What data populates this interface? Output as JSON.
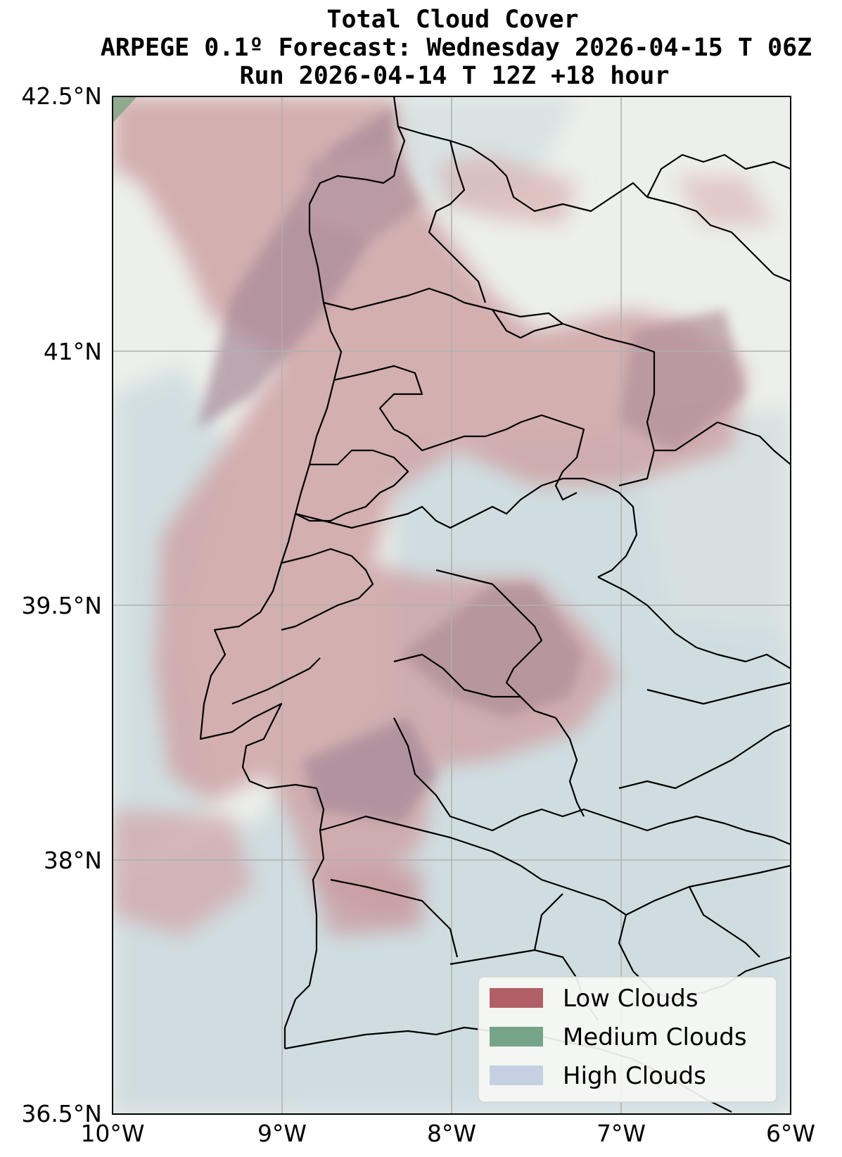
{
  "title": {
    "line1": "Total Cloud Cover",
    "line2": "ARPEGE 0.1º Forecast: Wednesday 2026-04-15 T 06Z",
    "line3": "Run 2026-04-14 T 12Z +18 hour"
  },
  "axes": {
    "lon_ticks": [
      "10°W",
      "9°W",
      "8°W",
      "7°W",
      "6°W"
    ],
    "lat_ticks": [
      "42.5°N",
      "41°N",
      "39.5°N",
      "38°N",
      "36.5°N"
    ],
    "lon_range": [
      -10,
      -6
    ],
    "lat_range": [
      36.5,
      42.5
    ],
    "grid": true
  },
  "legend": {
    "placement": "bottom-right",
    "items": [
      {
        "label": "Low Clouds",
        "color": "#b05f66"
      },
      {
        "label": "Medium Clouds",
        "color": "#76a489"
      },
      {
        "label": "High Clouds",
        "color": "#c5d1e2"
      }
    ]
  },
  "colors": {
    "ocean_base": "#e9ece6",
    "high_cloud": "#c7d8e0",
    "low_cloud": "#c99a9e",
    "low_cloud_dense": "#a98a98",
    "border": "#000000"
  }
}
